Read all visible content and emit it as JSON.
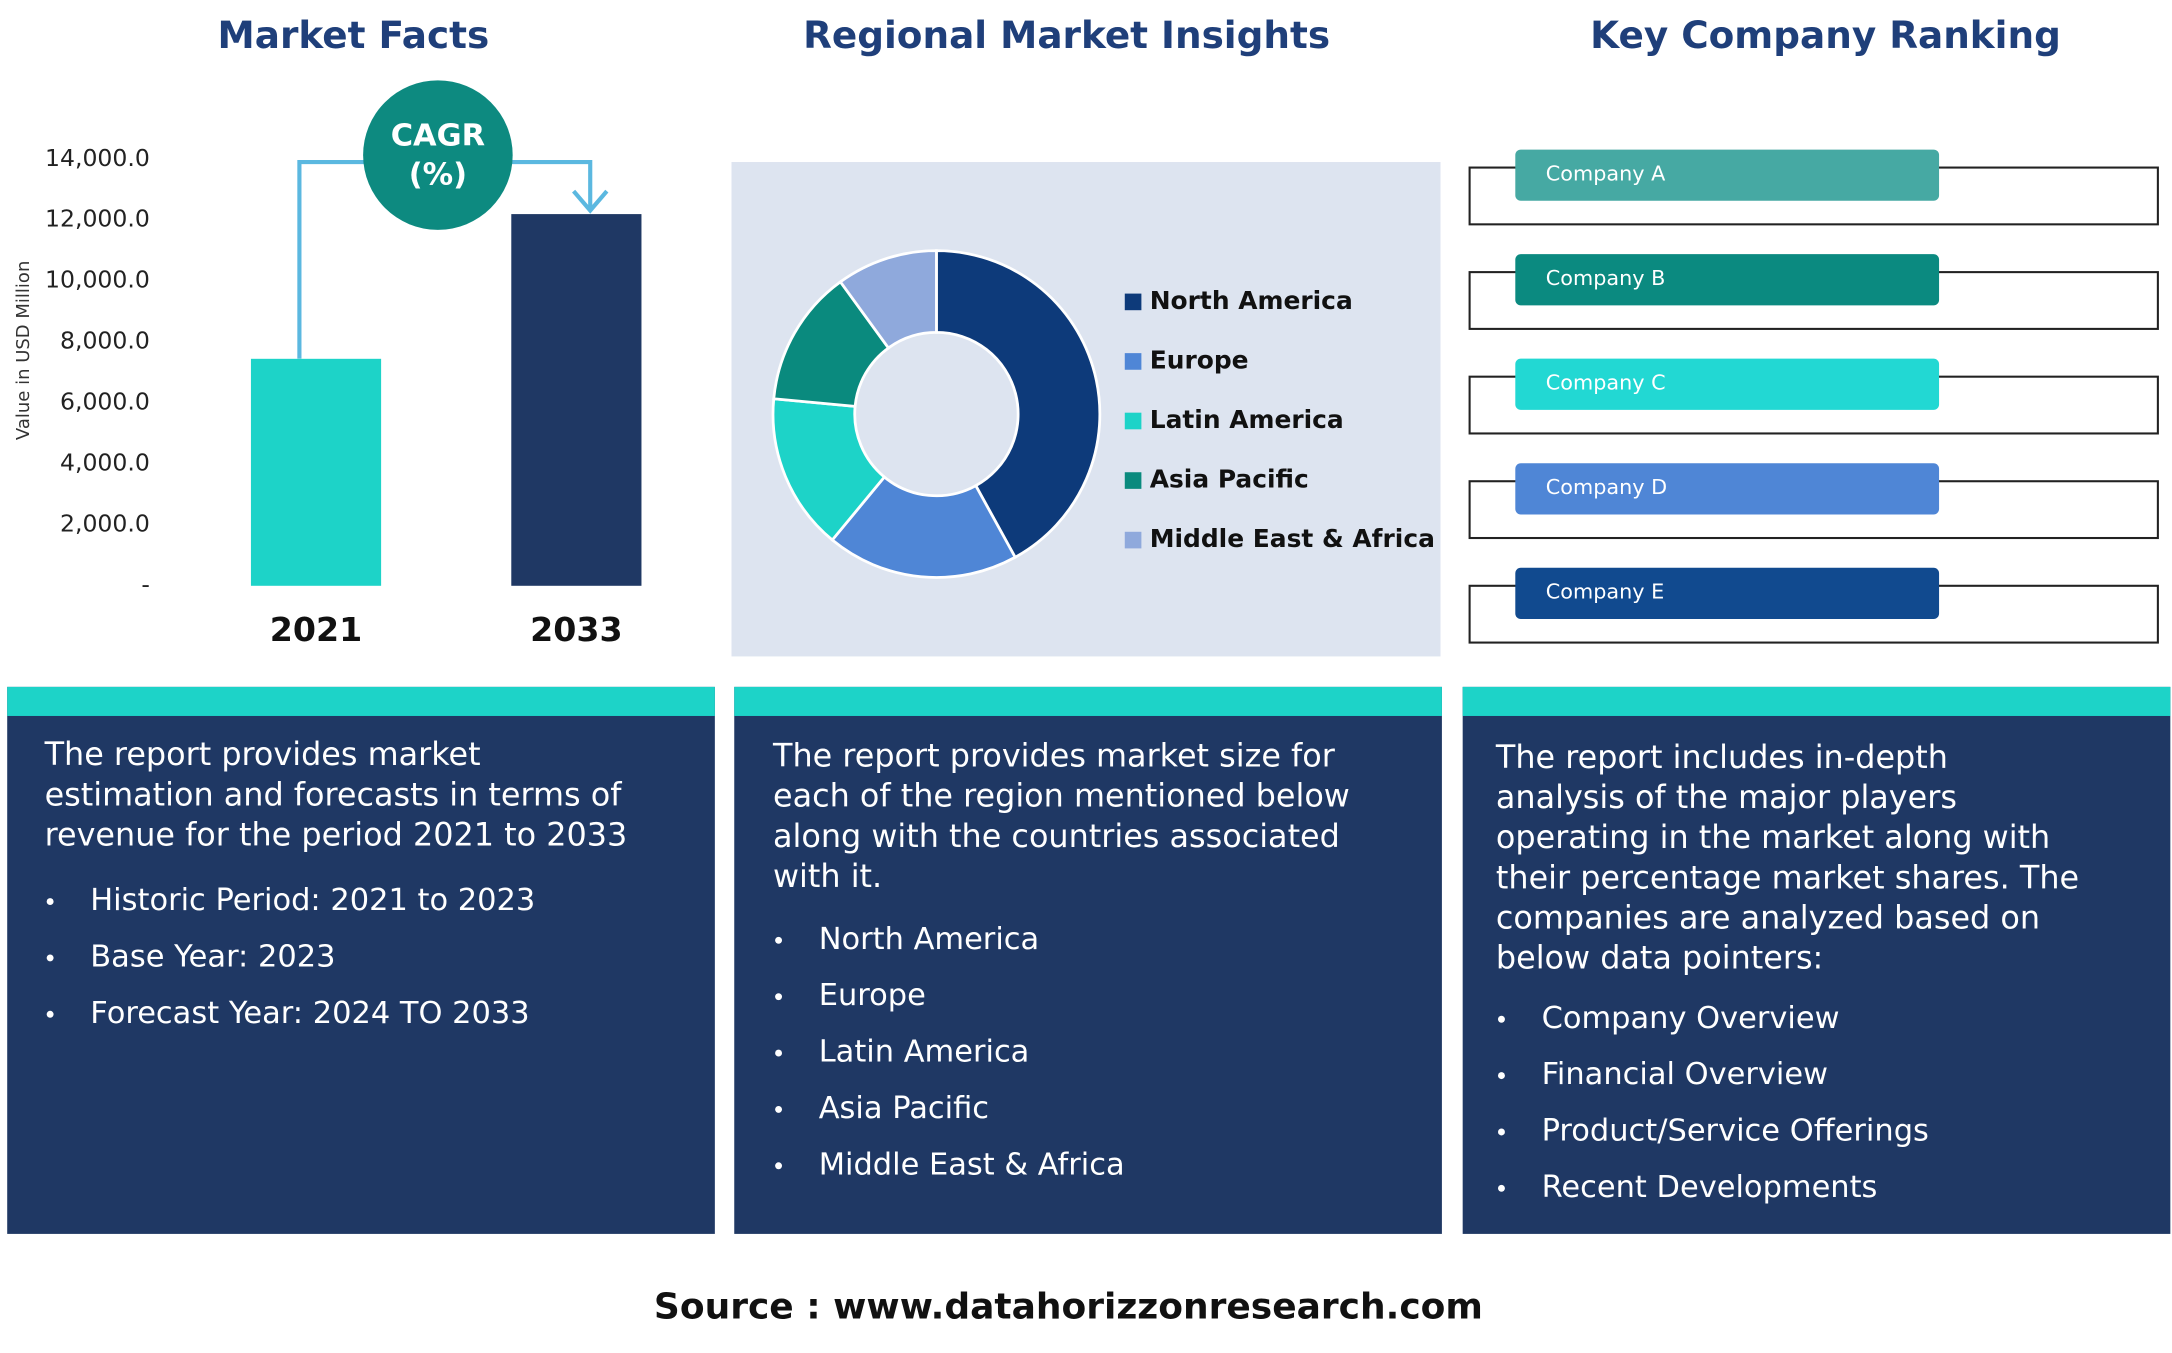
{
  "chart_data": [
    {
      "type": "bar",
      "title": "Market Facts",
      "y_label": "Value in USD Million",
      "categories": [
        "2021",
        "2033"
      ],
      "values": [
        7450,
        12200
      ],
      "colors": [
        "#1dd3c8",
        "#1f3864"
      ],
      "ylim": [
        0,
        14000
      ],
      "yticks": [
        {
          "value": 0,
          "label": "-"
        },
        {
          "value": 2000,
          "label": "2,000.0"
        },
        {
          "value": 4000,
          "label": "4,000.0"
        },
        {
          "value": 6000,
          "label": "6,000.0"
        },
        {
          "value": 8000,
          "label": "8,000.0"
        },
        {
          "value": 10000,
          "label": "10,000.0"
        },
        {
          "value": 12000,
          "label": "12,000.0"
        },
        {
          "value": 14000,
          "label": "14,000.0"
        }
      ],
      "annotation": [
        "CAGR",
        "(%)"
      ]
    },
    {
      "type": "donut",
      "title": "Regional Market Insights",
      "categories": [
        "North America",
        "Europe",
        "Latin America",
        "Asia Pacific",
        "Middle East & Africa"
      ],
      "values": [
        42,
        19,
        15.5,
        13.5,
        10
      ],
      "colors": [
        "#0d3a7a",
        "#4f86d6",
        "#1dd3c8",
        "#0a8a7e",
        "#8fa9dc"
      ]
    }
  ],
  "ranking": {
    "title": "Key Company Ranking",
    "companies": [
      {
        "name": "Company A",
        "color": "#46a9a3"
      },
      {
        "name": "Company B",
        "color": "#0b8a80"
      },
      {
        "name": "Company C",
        "color": "#22d8d3"
      },
      {
        "name": "Company D",
        "color": "#4f86d6"
      },
      {
        "name": "Company E",
        "color": "#114a8f"
      }
    ]
  },
  "panels": [
    {
      "lines": [
        "The report provides market",
        "estimation and forecasts in terms of",
        "revenue for the period 2021 to 2033"
      ],
      "bullets": [
        "Historic Period: 2021 to 2023",
        "Base Year: 2023",
        "Forecast Year: 2024 TO 2033"
      ]
    },
    {
      "lines": [
        "The report provides market size for",
        "each of the region mentioned below",
        "along with the countries associated",
        "with it."
      ],
      "bullets": [
        "North America",
        "Europe",
        "Latin America",
        "Asia Pacific",
        "Middle East & Africa"
      ]
    },
    {
      "lines": [
        "The report includes in-depth",
        "analysis of the major players",
        "operating in the market along with",
        "their percentage market shares. The",
        "companies are analyzed based on",
        "below data pointers:"
      ],
      "bullets": [
        "Company Overview",
        "Financial Overview",
        "Product/Service Offerings",
        "Recent Developments"
      ]
    }
  ],
  "source": "Source : www.datahorizzonresearch.com"
}
